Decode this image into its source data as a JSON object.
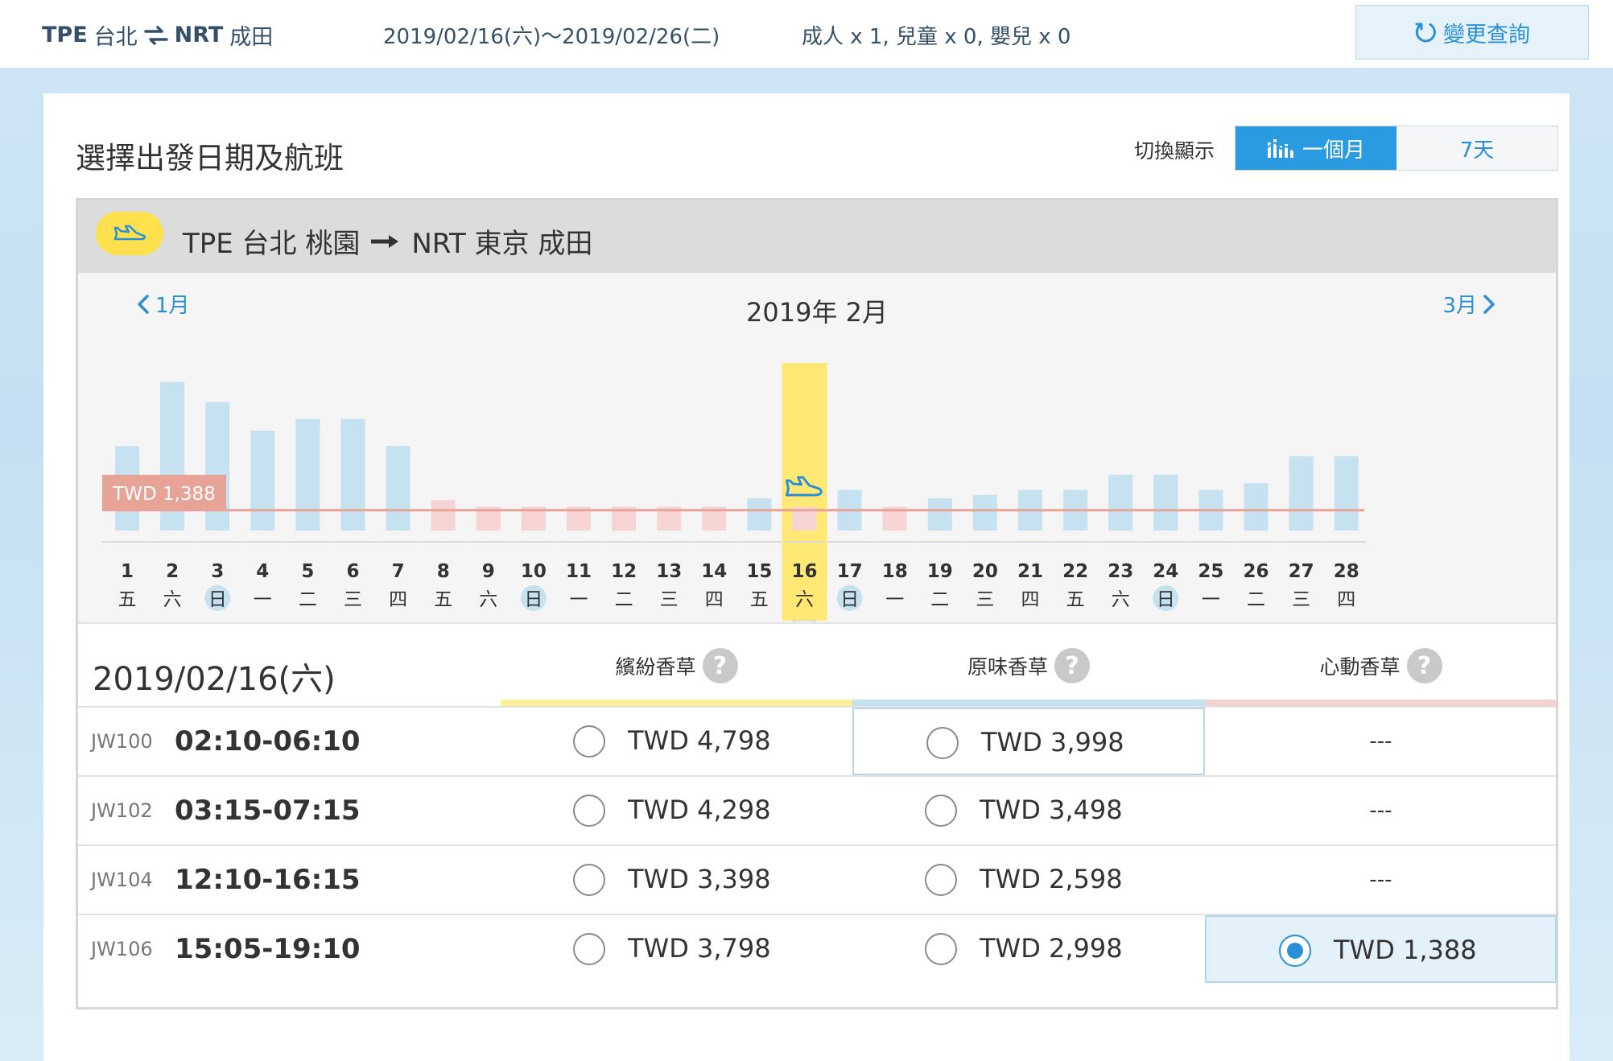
{
  "topbar": {
    "origin_code": "TPE",
    "origin_name": "台北",
    "dest_code": "NRT",
    "dest_name": "成田",
    "dates": "2019/02/16(六)〜2019/02/26(二)",
    "passengers": "成人 x 1,  兒童 x 0,  嬰兒 x 0",
    "change_label": "變更查詢"
  },
  "page": {
    "title": "選擇出發日期及航班",
    "toggle_label": "切換顯示",
    "toggle_month": "一個月",
    "toggle_week": "7天"
  },
  "panel": {
    "route_text_origin": "TPE  台北 桃園",
    "route_text_dest": "NRT  東京 成田"
  },
  "calendar": {
    "prev_label": "1月",
    "next_label": "3月",
    "month_title": "2019年 2月",
    "min_price_label": "TWD 1,388",
    "selected_day": 16,
    "days": [
      {
        "d": "1",
        "w": "五"
      },
      {
        "d": "2",
        "w": "六"
      },
      {
        "d": "3",
        "w": "日"
      },
      {
        "d": "4",
        "w": "一"
      },
      {
        "d": "5",
        "w": "二"
      },
      {
        "d": "6",
        "w": "三"
      },
      {
        "d": "7",
        "w": "四"
      },
      {
        "d": "8",
        "w": "五"
      },
      {
        "d": "9",
        "w": "六"
      },
      {
        "d": "10",
        "w": "日"
      },
      {
        "d": "11",
        "w": "一"
      },
      {
        "d": "12",
        "w": "二"
      },
      {
        "d": "13",
        "w": "三"
      },
      {
        "d": "14",
        "w": "四"
      },
      {
        "d": "15",
        "w": "五"
      },
      {
        "d": "16",
        "w": "六"
      },
      {
        "d": "17",
        "w": "日"
      },
      {
        "d": "18",
        "w": "一"
      },
      {
        "d": "19",
        "w": "二"
      },
      {
        "d": "20",
        "w": "三"
      },
      {
        "d": "21",
        "w": "四"
      },
      {
        "d": "22",
        "w": "五"
      },
      {
        "d": "23",
        "w": "六"
      },
      {
        "d": "24",
        "w": "日"
      },
      {
        "d": "25",
        "w": "一"
      },
      {
        "d": "26",
        "w": "二"
      },
      {
        "d": "27",
        "w": "三"
      },
      {
        "d": "28",
        "w": "四"
      }
    ],
    "levels": [
      0.5,
      0.88,
      0.76,
      0.59,
      0.66,
      0.66,
      0.5,
      0.18,
      0.14,
      0.14,
      0.14,
      0.14,
      0.14,
      0.14,
      0.19,
      0.14,
      0.24,
      0.14,
      0.19,
      0.21,
      0.24,
      0.24,
      0.33,
      0.33,
      0.24,
      0.28,
      0.44,
      0.44
    ],
    "low_days": [
      8,
      9,
      10,
      11,
      12,
      13,
      14,
      16,
      18
    ],
    "min_line_level": 0.12
  },
  "table": {
    "selected_date": "2019/02/16(六)",
    "columns": [
      {
        "name": "繽紛香草",
        "color": "#fff199"
      },
      {
        "name": "原味香草",
        "color": "#c6e1f0"
      },
      {
        "name": "心動香草",
        "color": "#f5d2d2"
      }
    ],
    "help_glyph": "?",
    "rows": [
      {
        "flight": "JW100",
        "time": "02:10-06:10",
        "fares": [
          "TWD 4,798",
          "TWD 3,998",
          "---"
        ]
      },
      {
        "flight": "JW102",
        "time": "03:15-07:15",
        "fares": [
          "TWD 4,298",
          "TWD 3,498",
          "---"
        ]
      },
      {
        "flight": "JW104",
        "time": "12:10-16:15",
        "fares": [
          "TWD 3,398",
          "TWD 2,598",
          "---"
        ]
      },
      {
        "flight": "JW106",
        "time": "15:05-19:10",
        "fares": [
          "TWD 3,798",
          "TWD 2,998",
          "TWD 1,388"
        ]
      }
    ]
  }
}
